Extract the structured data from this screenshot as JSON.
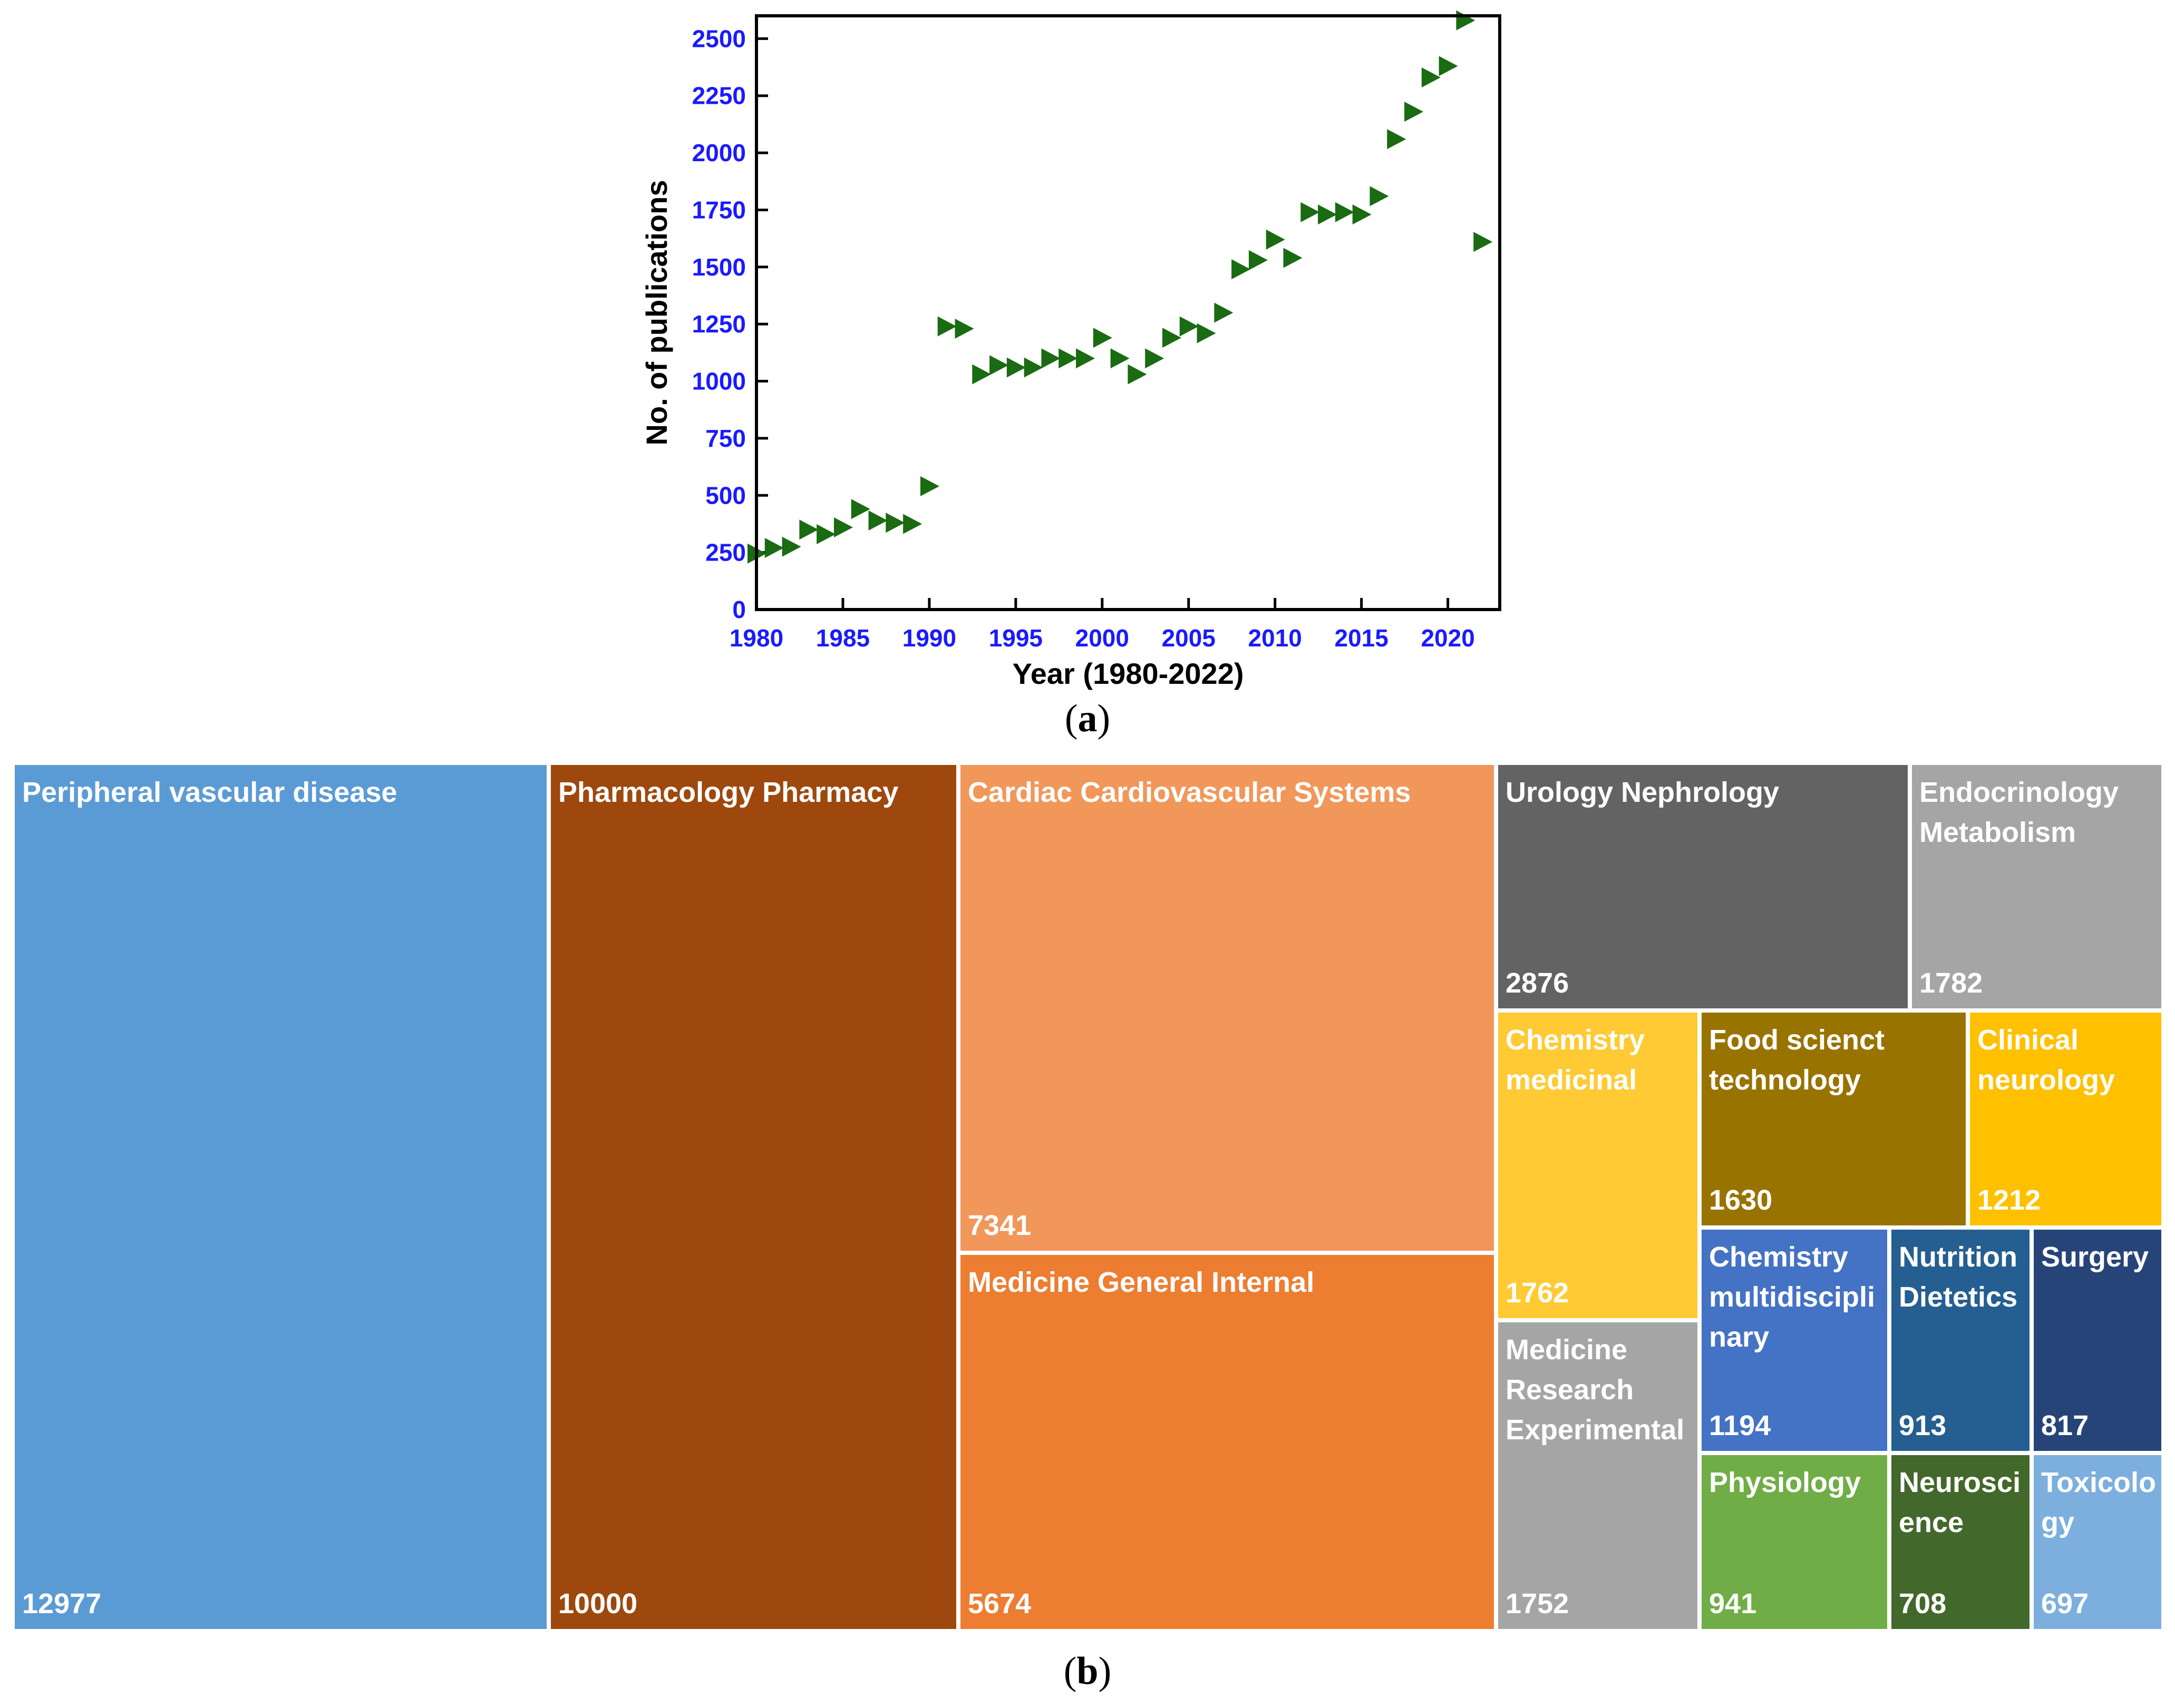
{
  "chart_data": [
    {
      "type": "scatter",
      "title": "",
      "xlabel": "Year (1980-2022)",
      "ylabel": "No. of publications",
      "xlim": [
        1980,
        2023
      ],
      "ylim": [
        0,
        2600
      ],
      "xticks": [
        1980,
        1985,
        1990,
        1995,
        2000,
        2005,
        2010,
        2015,
        2020
      ],
      "yticks": [
        0,
        250,
        500,
        750,
        1000,
        1250,
        1500,
        1750,
        2000,
        2250,
        2500
      ],
      "marker": "triangle-right",
      "color": "#1a6b12",
      "tick_color": "#1a1aff",
      "x": [
        1980,
        1981,
        1982,
        1983,
        1984,
        1985,
        1986,
        1987,
        1988,
        1989,
        1990,
        1991,
        1992,
        1993,
        1994,
        1995,
        1996,
        1997,
        1998,
        1999,
        2000,
        2001,
        2002,
        2003,
        2004,
        2005,
        2006,
        2007,
        2008,
        2009,
        2010,
        2011,
        2012,
        2013,
        2014,
        2015,
        2016,
        2017,
        2018,
        2019,
        2020,
        2021,
        2022
      ],
      "y": [
        245,
        270,
        275,
        350,
        330,
        360,
        440,
        390,
        380,
        375,
        540,
        1240,
        1230,
        1030,
        1070,
        1060,
        1060,
        1100,
        1100,
        1100,
        1190,
        1100,
        1030,
        1100,
        1190,
        1240,
        1210,
        1300,
        1490,
        1530,
        1620,
        1540,
        1740,
        1730,
        1740,
        1730,
        1810,
        2060,
        2180,
        2330,
        2380,
        2580,
        1610
      ],
      "sub_label": {
        "open": "(",
        "letter": "a",
        "close": ")"
      }
    },
    {
      "type": "treemap",
      "sub_label": {
        "open": "(",
        "letter": "b",
        "close": ")"
      },
      "items": [
        {
          "label": "Peripheral vascular disease",
          "value": "12977",
          "color": "#5b9bd5"
        },
        {
          "label": "Pharmacology Pharmacy",
          "value": "10000",
          "color": "#9e480e"
        },
        {
          "label": "Cardiac Cardiovascular Systems",
          "value": "7341",
          "color": "#f1975a"
        },
        {
          "label": "Medicine General Internal",
          "value": "5674",
          "color": "#ed7d31"
        },
        {
          "label": "Urology Nephrology",
          "value": "2876",
          "color": "#636363"
        },
        {
          "label": "Endocrinology Metabolism",
          "value": "1782",
          "color": "#a5a5a5"
        },
        {
          "label": "Chemistry medicinal",
          "value": "1762",
          "color": "#ffca33"
        },
        {
          "label": "Food scienct technology",
          "value": "1630",
          "color": "#997300"
        },
        {
          "label": "Clinical neurology",
          "value": "1212",
          "color": "#ffc000"
        },
        {
          "label": "Medicine Research Experimental",
          "value": "1752",
          "color": "#a5a5a5"
        },
        {
          "label": "Chemistry multidiscipli nary",
          "value": "1194",
          "color": "#4472c4"
        },
        {
          "label": "Nutrition Dietetics",
          "value": "913",
          "color": "#255e91"
        },
        {
          "label": "Surgery",
          "value": "817",
          "color": "#264478"
        },
        {
          "label": "Physiology",
          "value": "941",
          "color": "#70ad47"
        },
        {
          "label": "Neurosci ence",
          "value": "708",
          "color": "#43682b"
        },
        {
          "label": "Toxicolo gy",
          "value": "697",
          "color": "#7cafdd"
        }
      ]
    }
  ]
}
